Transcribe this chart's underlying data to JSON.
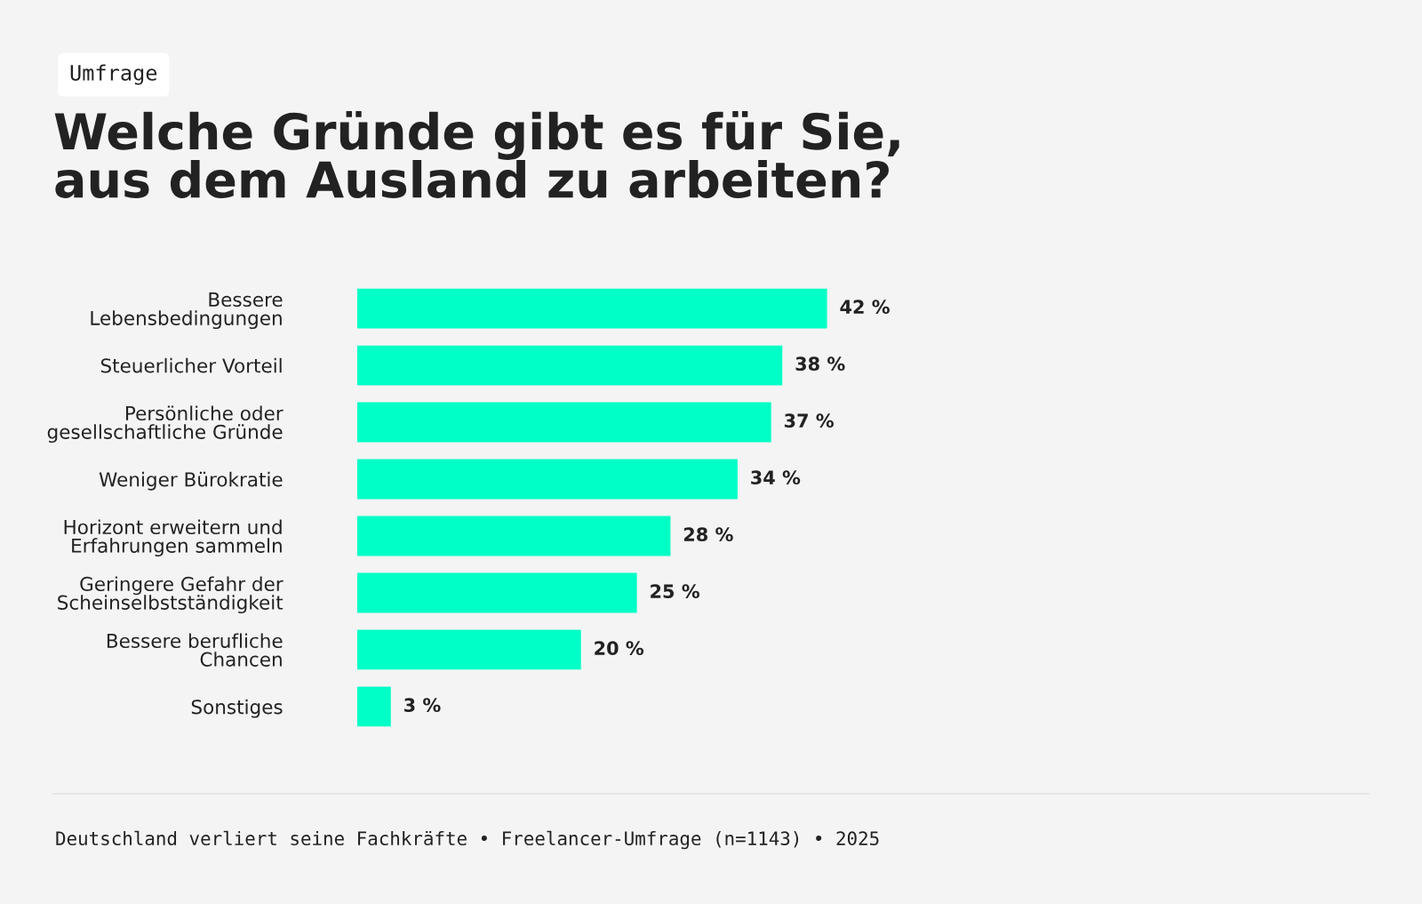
{
  "chart_data": {
    "type": "bar",
    "orientation": "horizontal",
    "title": "Welche Gründe gibt es für Sie,\naus dem Ausland zu arbeiten?",
    "categories": [
      "Bessere\nLebensbedingungen",
      "Steuerlicher Vorteil",
      "Persönliche oder\ngesellschaftliche Gründe",
      "Weniger Bürokratie",
      "Horizont erweitern und\nErfahrungen sammeln",
      "Geringere Gefahr der\nScheinselbstständigkeit",
      "Bessere berufliche\nChancen",
      "Sonstiges"
    ],
    "values": [
      42,
      38,
      37,
      34,
      28,
      25,
      20,
      3
    ],
    "value_labels": [
      "42 %",
      "38 %",
      "37 %",
      "34 %",
      "28 %",
      "25 %",
      "20 %",
      "3 %"
    ],
    "color": "#00ffc6",
    "annotations": [
      "Umfrage",
      "Deutschland verliert seine Fachkräfte • Freelancer-Umfrage (n=1143) • 2025"
    ],
    "grid": false,
    "legend": false
  }
}
